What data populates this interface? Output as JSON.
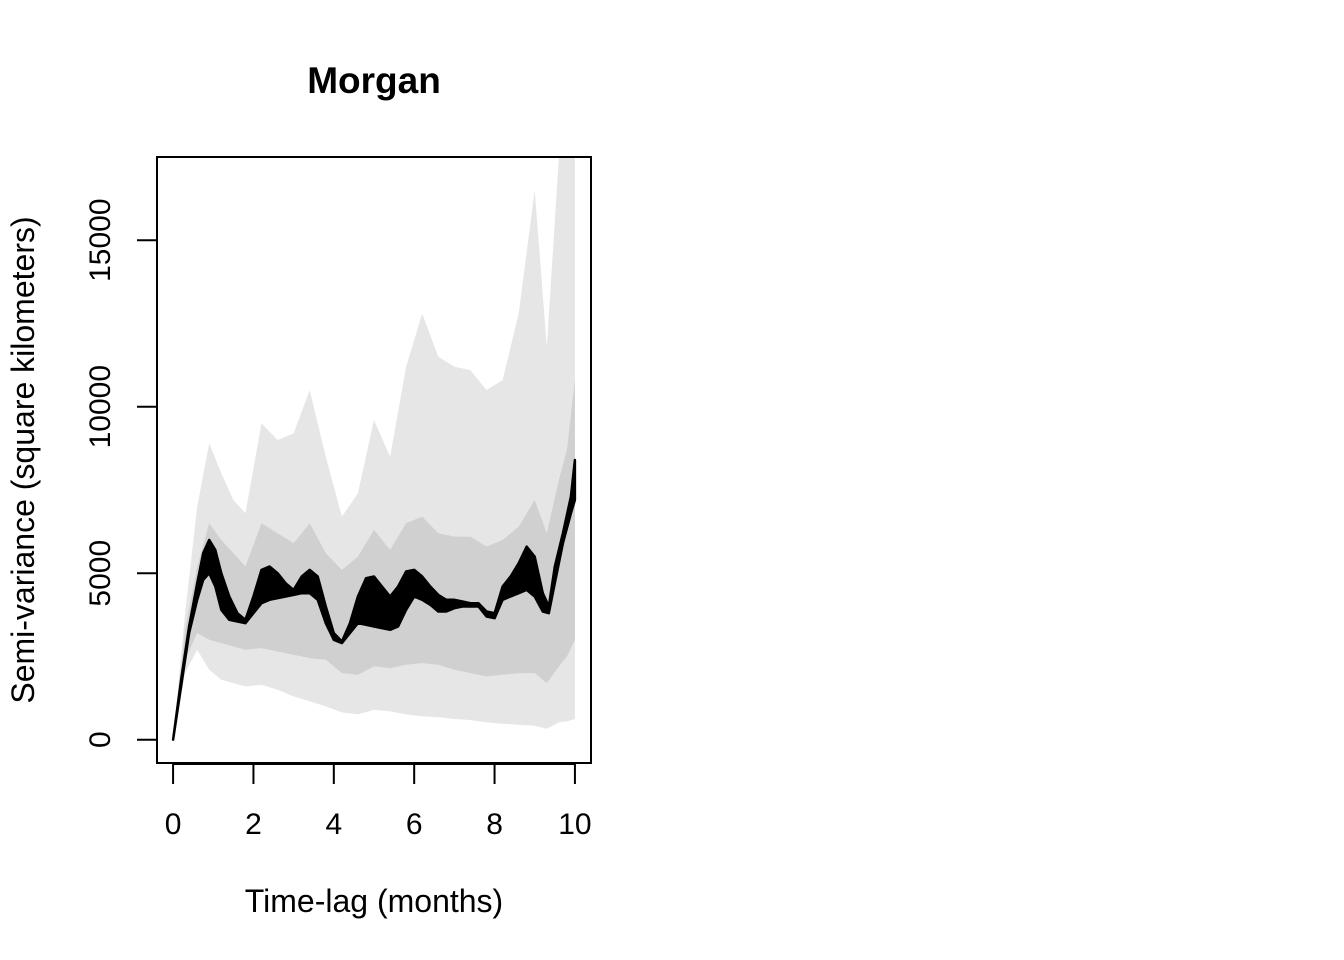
{
  "chart_data": {
    "type": "area",
    "title": "Morgan",
    "xlabel": "Time-lag (months)",
    "ylabel": "Semi-variance (square kilometers)",
    "xlim": [
      -0.4,
      10.4
    ],
    "ylim": [
      -700,
      17500
    ],
    "xticks": [
      0,
      2,
      4,
      6,
      8,
      10
    ],
    "xtick_labels": [
      "0",
      "2",
      "4",
      "6",
      "8",
      "10"
    ],
    "yticks": [
      0,
      5000,
      10000,
      15000
    ],
    "ytick_labels": [
      "0",
      "5000",
      "10000",
      "15000"
    ],
    "grid": false,
    "legend": "none",
    "colors": {
      "outer_band": "#e6e6e6",
      "inner_band": "#d0d0d0",
      "estimate": "#000000"
    },
    "series": [
      {
        "role": "outer-envelope",
        "x": [
          0,
          0.3,
          0.6,
          0.9,
          1.2,
          1.5,
          1.8,
          2.2,
          2.6,
          3.0,
          3.4,
          3.8,
          4.2,
          4.6,
          5.0,
          5.4,
          5.8,
          6.2,
          6.6,
          7.0,
          7.4,
          7.8,
          8.2,
          8.6,
          9.0,
          9.3,
          9.6,
          9.8,
          10.0
        ],
        "upper": [
          0,
          3800,
          7000,
          8900,
          8000,
          7200,
          6800,
          9500,
          9000,
          9200,
          10500,
          8500,
          6700,
          7400,
          9600,
          8500,
          11200,
          12800,
          11500,
          11200,
          11100,
          10500,
          10800,
          12800,
          16500,
          11800,
          17500,
          17500,
          17500
        ],
        "lower": [
          0,
          2000,
          2700,
          2100,
          1800,
          1700,
          1600,
          1650,
          1500,
          1300,
          1150,
          1000,
          820,
          760,
          900,
          850,
          760,
          700,
          680,
          620,
          590,
          520,
          480,
          450,
          420,
          330,
          520,
          550,
          620
        ]
      },
      {
        "role": "inner-envelope",
        "x": [
          0,
          0.3,
          0.6,
          0.9,
          1.2,
          1.5,
          1.8,
          2.2,
          2.6,
          3.0,
          3.4,
          3.8,
          4.2,
          4.6,
          5.0,
          5.4,
          5.8,
          6.2,
          6.6,
          7.0,
          7.4,
          7.8,
          8.2,
          8.6,
          9.0,
          9.3,
          9.6,
          9.8,
          10.0
        ],
        "upper": [
          0,
          3300,
          5200,
          6500,
          6000,
          5600,
          5200,
          6500,
          6200,
          5900,
          6500,
          5600,
          5100,
          5500,
          6300,
          5700,
          6500,
          6700,
          6200,
          6100,
          6100,
          5800,
          6000,
          6400,
          7200,
          6200,
          7800,
          8700,
          10800
        ],
        "lower": [
          0,
          2400,
          3200,
          3000,
          2900,
          2800,
          2700,
          2750,
          2650,
          2550,
          2450,
          2400,
          2000,
          1950,
          2200,
          2150,
          2250,
          2300,
          2250,
          2100,
          2000,
          1900,
          1950,
          2000,
          2000,
          1700,
          2200,
          2500,
          3000
        ]
      },
      {
        "role": "estimate-band",
        "x": [
          0,
          0.2,
          0.4,
          0.6,
          0.75,
          0.9,
          1.05,
          1.2,
          1.4,
          1.6,
          1.8,
          2.0,
          2.2,
          2.4,
          2.6,
          2.8,
          3.0,
          3.2,
          3.4,
          3.6,
          3.8,
          4.0,
          4.2,
          4.4,
          4.6,
          4.8,
          5.0,
          5.2,
          5.4,
          5.6,
          5.8,
          6.0,
          6.2,
          6.4,
          6.6,
          6.8,
          7.0,
          7.2,
          7.4,
          7.6,
          7.8,
          8.0,
          8.2,
          8.4,
          8.6,
          8.8,
          9.0,
          9.2,
          9.35,
          9.5,
          9.7,
          9.9,
          10.0
        ],
        "upper": [
          0,
          1800,
          3400,
          4700,
          5600,
          6000,
          5700,
          5000,
          4300,
          3800,
          3600,
          4300,
          5100,
          5200,
          5000,
          4700,
          4500,
          4900,
          5100,
          4900,
          4000,
          3200,
          2950,
          3500,
          4300,
          4850,
          4900,
          4600,
          4300,
          4600,
          5050,
          5100,
          4900,
          4600,
          4350,
          4200,
          4200,
          4150,
          4100,
          4100,
          3850,
          3800,
          4600,
          4900,
          5300,
          5800,
          5500,
          4400,
          4000,
          5200,
          6200,
          7300,
          8400
        ],
        "lower": [
          0,
          1600,
          3200,
          4200,
          4800,
          5000,
          4600,
          3900,
          3600,
          3550,
          3500,
          3800,
          4100,
          4200,
          4250,
          4300,
          4350,
          4400,
          4400,
          4200,
          3500,
          3000,
          2900,
          3200,
          3500,
          3450,
          3400,
          3350,
          3300,
          3400,
          3900,
          4300,
          4200,
          4050,
          3850,
          3850,
          3950,
          4000,
          4000,
          4000,
          3700,
          3650,
          4200,
          4300,
          4400,
          4500,
          4300,
          3850,
          3800,
          4700,
          5900,
          6800,
          7200
        ]
      }
    ]
  }
}
